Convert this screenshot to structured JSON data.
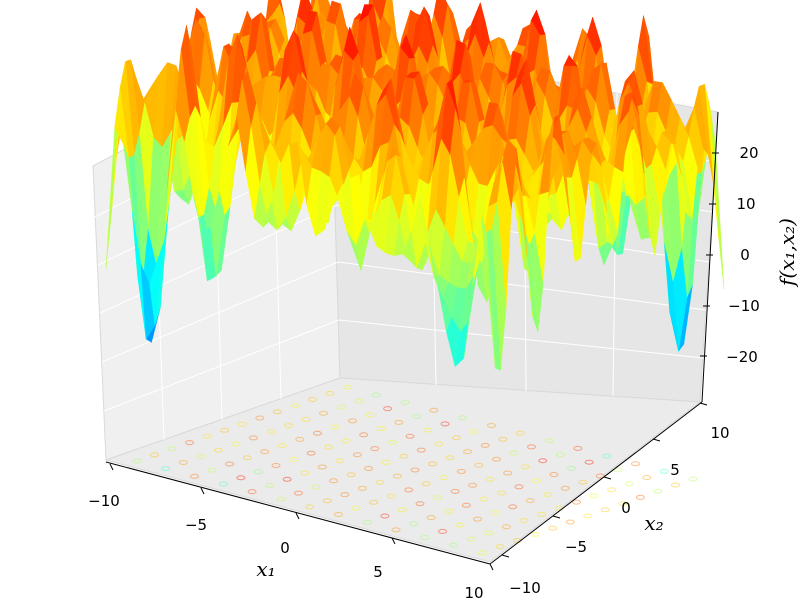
{
  "chart_data": {
    "type": "surface3d",
    "title": "",
    "x_label": "x₁",
    "y_label": "x₂",
    "z_label": "f(x₁,x₂)",
    "x_range": [
      -10,
      10
    ],
    "y_range": [
      -10,
      10
    ],
    "z_range": [
      -28,
      25
    ],
    "x_ticks": [
      "−10",
      "−5",
      "0",
      "5",
      "10"
    ],
    "y_ticks": [
      "−10",
      "−5",
      "0",
      "5",
      "10"
    ],
    "z_ticks": [
      "−20",
      "−10",
      "0",
      "10",
      "20"
    ],
    "colormap": [
      "#00007f",
      "#0000ff",
      "#007fff",
      "#00ffff",
      "#7fff7f",
      "#ffff00",
      "#ff7f00",
      "#ff0000",
      "#7f0000"
    ],
    "contour_projection_on_floor": true,
    "grid": true
  }
}
